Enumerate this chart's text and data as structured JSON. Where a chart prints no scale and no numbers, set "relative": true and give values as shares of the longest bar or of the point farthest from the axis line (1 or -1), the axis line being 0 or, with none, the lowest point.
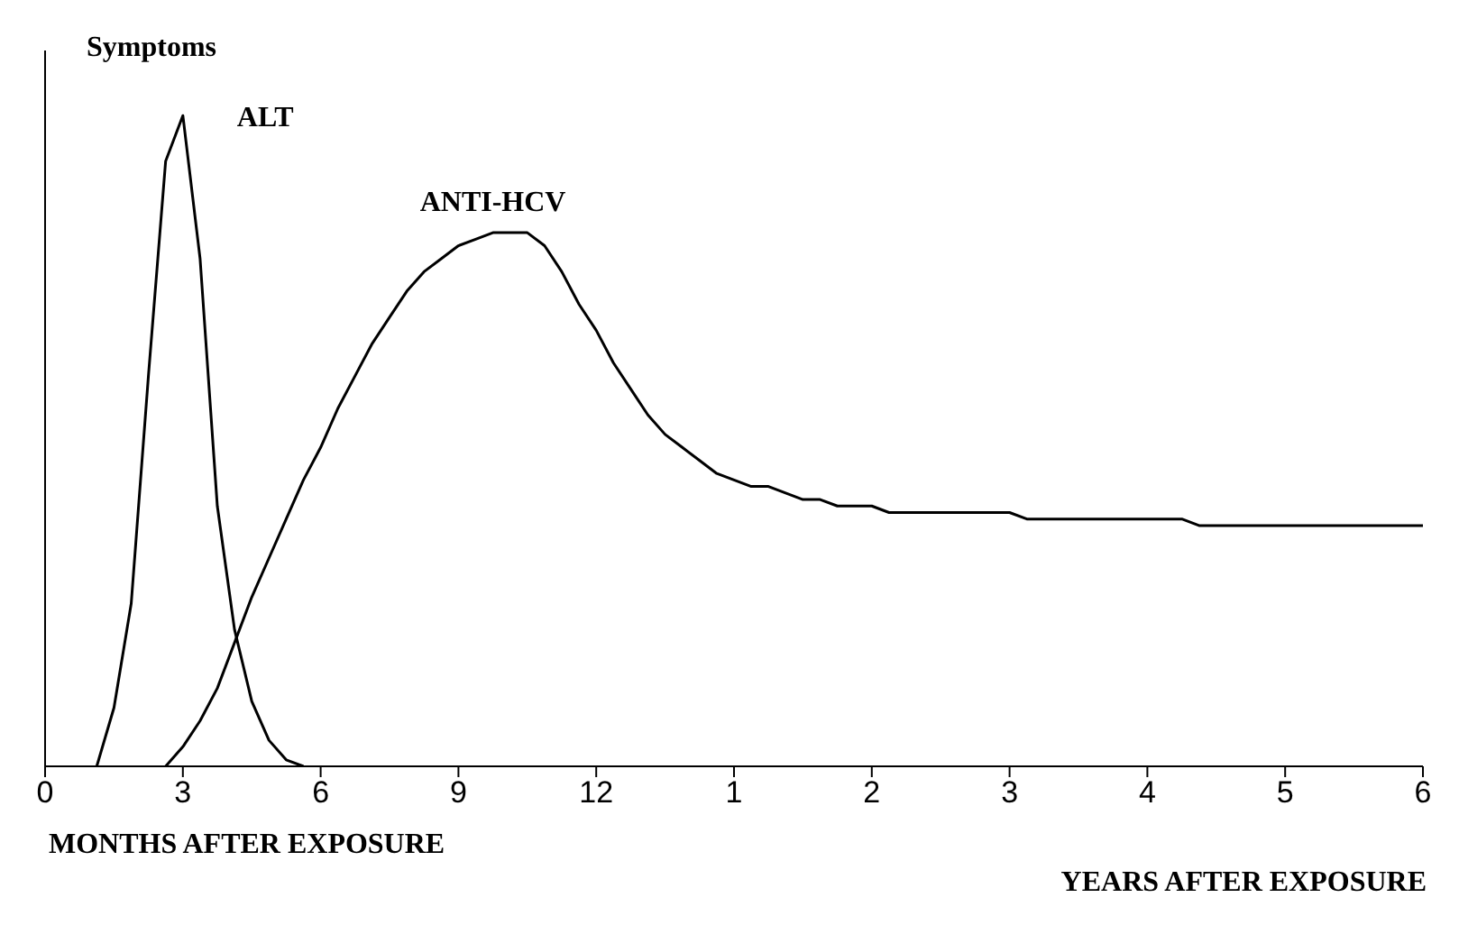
{
  "chart_data": {
    "type": "line",
    "relative": true,
    "xlabel": "MONTHS AFTER EXPOSURE",
    "annotations": [
      "Symptoms",
      "YEARS AFTER EXPOSURE"
    ],
    "categories": [
      "0",
      null,
      null,
      null,
      null,
      null,
      null,
      null,
      "3",
      null,
      null,
      null,
      null,
      null,
      null,
      null,
      "6",
      null,
      null,
      null,
      null,
      null,
      null,
      null,
      "9",
      null,
      null,
      null,
      null,
      null,
      null,
      null,
      "12",
      null,
      null,
      null,
      null,
      null,
      null,
      null,
      "1",
      null,
      null,
      null,
      null,
      null,
      null,
      null,
      "2",
      null,
      null,
      null,
      null,
      null,
      null,
      null,
      "3",
      null,
      null,
      null,
      null,
      null,
      null,
      null,
      "4",
      null,
      null,
      null,
      null,
      null,
      null,
      null,
      "5",
      null,
      null,
      null,
      null,
      null,
      null,
      null,
      "6"
    ],
    "marker": "none",
    "line_style": "solid",
    "grid": false,
    "legend": false,
    "series": [
      {
        "name": "ALT",
        "color": "#000000",
        "values": [
          null,
          null,
          null,
          0,
          0.09,
          0.25,
          0.6,
          0.93,
          1,
          0.78,
          0.4,
          0.21,
          0.1,
          0.04,
          0.01,
          0,
          null,
          null,
          null,
          null,
          null,
          null,
          null,
          null,
          null,
          null,
          null,
          null,
          null,
          null,
          null,
          null,
          null,
          null,
          null,
          null,
          null,
          null,
          null,
          null,
          null,
          null,
          null,
          null,
          null,
          null,
          null,
          null,
          null,
          null,
          null,
          null,
          null,
          null,
          null,
          null,
          null,
          null,
          null,
          null,
          null,
          null,
          null,
          null,
          null,
          null,
          null,
          null,
          null,
          null,
          null,
          null,
          null,
          null,
          null,
          null,
          null,
          null,
          null,
          null,
          null
        ]
      },
      {
        "name": "ANTI-HCV",
        "color": "#000000",
        "values": [
          null,
          null,
          null,
          null,
          null,
          null,
          null,
          0,
          0.03,
          0.07,
          0.12,
          0.19,
          0.26,
          0.32,
          0.38,
          0.44,
          0.49,
          0.55,
          0.6,
          0.65,
          0.69,
          0.73,
          0.76,
          0.78,
          0.8,
          0.81,
          0.82,
          0.82,
          0.82,
          0.8,
          0.76,
          0.71,
          0.67,
          0.62,
          0.58,
          0.54,
          0.51,
          0.49,
          0.47,
          0.45,
          0.44,
          0.43,
          0.43,
          0.42,
          0.41,
          0.41,
          0.4,
          0.4,
          0.4,
          0.39,
          0.39,
          0.39,
          0.39,
          0.39,
          0.39,
          0.39,
          0.39,
          0.38,
          0.38,
          0.38,
          0.38,
          0.38,
          0.38,
          0.38,
          0.38,
          0.38,
          0.38,
          0.37,
          0.37,
          0.37,
          0.37,
          0.37,
          0.37,
          0.37,
          0.37,
          0.37,
          0.37,
          0.37,
          0.37,
          0.37,
          0.37
        ]
      }
    ]
  }
}
